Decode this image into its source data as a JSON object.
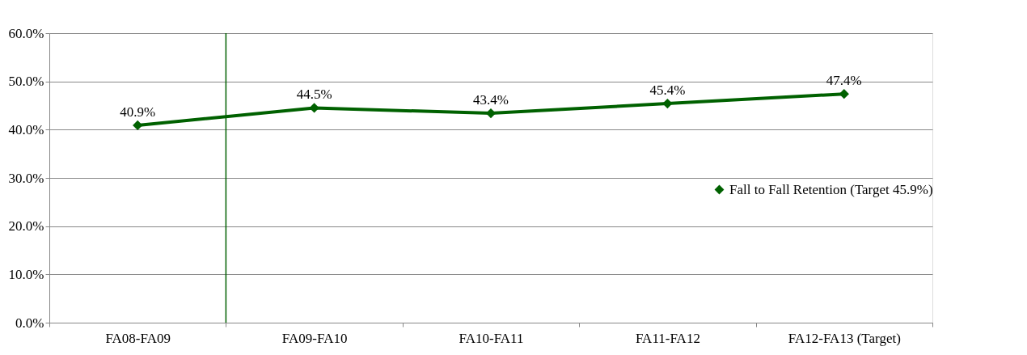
{
  "chart_data": {
    "type": "line",
    "categories": [
      "FA08-FA09",
      "FA09-FA10",
      "FA10-FA11",
      "FA11-FA12",
      "FA12-FA13 (Target)"
    ],
    "series": [
      {
        "name": "Fall to Fall Retention (Target 45.9%)",
        "color": "#006100",
        "values": [
          40.9,
          44.5,
          43.4,
          45.4,
          47.4
        ],
        "value_labels": [
          "40.9%",
          "44.5%",
          "43.4%",
          "45.4%",
          "47.4%"
        ]
      }
    ],
    "ylim": [
      0,
      60
    ],
    "yticks": [
      {
        "value": 0,
        "label": "0.0%"
      },
      {
        "value": 10,
        "label": "10.0%"
      },
      {
        "value": 20,
        "label": "20.0%"
      },
      {
        "value": 30,
        "label": "30.0%"
      },
      {
        "value": 40,
        "label": "40.0%"
      },
      {
        "value": 50,
        "label": "50.0%"
      },
      {
        "value": 60,
        "label": "60.0%"
      }
    ],
    "ref_lines": [
      {
        "axis": "x",
        "value": "FA09-FA10",
        "color": "#006100"
      }
    ],
    "grid": "y",
    "legend": "right",
    "marker": "diamond",
    "line_style": "solid"
  }
}
